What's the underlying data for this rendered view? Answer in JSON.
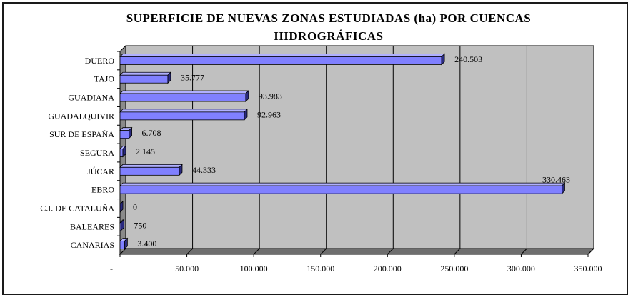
{
  "chart_data": {
    "type": "bar",
    "orientation": "horizontal",
    "title": "SUPERFICIE DE NUEVAS ZONAS ESTUDIADAS (ha) POR CUENCAS HIDROGRÁFICAS",
    "title_lines": [
      "SUPERFICIE DE NUEVAS ZONAS ESTUDIADAS (ha) POR CUENCAS",
      "HIDROGRÁFICAS"
    ],
    "categories": [
      "DUERO",
      "TAJO",
      "GUADIANA",
      "GUADALQUIVIR",
      "SUR DE ESPAÑA",
      "SEGURA",
      "JÚCAR",
      "EBRO",
      "C.I. DE CATALUÑA",
      "BALEARES",
      "CANARIAS"
    ],
    "values": [
      240503,
      35777,
      93983,
      92963,
      6708,
      2145,
      44333,
      330463,
      0,
      750,
      3400
    ],
    "value_labels": [
      "240.503",
      "35.777",
      "93.983",
      "92.963",
      "6.708",
      "2.145",
      "44.333",
      "330.463",
      "0",
      "750",
      "3.400"
    ],
    "xlim": [
      0,
      350000
    ],
    "x_ticks": [
      0,
      50000,
      100000,
      150000,
      200000,
      250000,
      300000,
      350000
    ],
    "x_tick_labels": [
      "-",
      "50.000",
      "100.000",
      "150.000",
      "200.000",
      "250.000",
      "300.000",
      "350.000"
    ],
    "xlabel": "",
    "ylabel": "",
    "grid": true,
    "legend": "none",
    "colors": {
      "bar_fill": "#8080ff",
      "bar_side": "#2a2a80",
      "bar_stroke": "#000000",
      "plot_background": "#c0c0c0",
      "left_wall": "#8a8a8a",
      "floor": "#6e6e6e",
      "gridline": "#000000"
    }
  }
}
